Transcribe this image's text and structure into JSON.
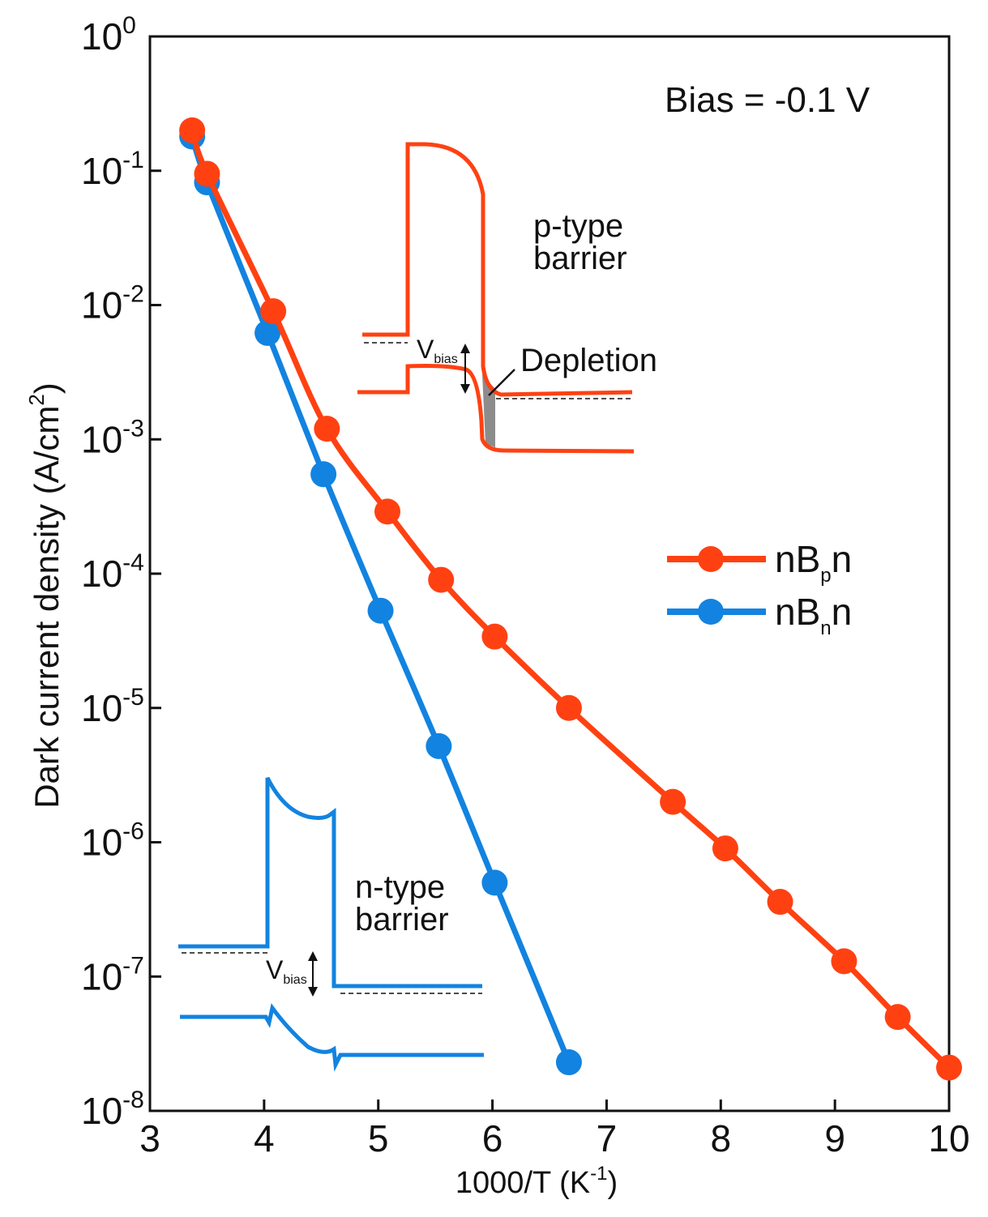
{
  "chart_data": {
    "type": "line",
    "title": "",
    "xlabel": "1000/T (K",
    "xlabel_sup": "-1",
    "xlabel_end": ")",
    "ylabel": "Dark current density (A/cm",
    "ylabel_sup": "2",
    "ylabel_end": ")",
    "xlim": [
      3,
      10
    ],
    "ylim_log10": [
      -8,
      0
    ],
    "y_scale": "log",
    "x_ticks": [
      "3",
      "4",
      "5",
      "6",
      "7",
      "8",
      "9",
      "10"
    ],
    "y_ticks": [
      {
        "base": "10",
        "exp": "0"
      },
      {
        "base": "10",
        "exp": "-1"
      },
      {
        "base": "10",
        "exp": "-2"
      },
      {
        "base": "10",
        "exp": "-3"
      },
      {
        "base": "10",
        "exp": "-4"
      },
      {
        "base": "10",
        "exp": "-5"
      },
      {
        "base": "10",
        "exp": "-6"
      },
      {
        "base": "10",
        "exp": "-7"
      },
      {
        "base": "10",
        "exp": "-8"
      }
    ],
    "annotation": "Bias = -0.1 V",
    "legend_position": "right-middle",
    "series": [
      {
        "name": "nBpn",
        "label_main": "nB",
        "label_sub": "p",
        "label_end": "n",
        "color": "#ff4112",
        "x": [
          3.37,
          3.5,
          4.08,
          4.55,
          5.08,
          5.55,
          6.02,
          6.67,
          7.58,
          8.04,
          8.52,
          9.08,
          9.55,
          10.0
        ],
        "y": [
          0.2,
          0.095,
          0.009,
          0.0012,
          0.00029,
          9e-05,
          3.4e-05,
          1e-05,
          2e-06,
          9e-07,
          3.6e-07,
          1.3e-07,
          5e-08,
          2.1e-08
        ]
      },
      {
        "name": "nBnn",
        "label_main": "nB",
        "label_sub": "n",
        "label_end": "n",
        "color": "#1283e0",
        "x": [
          3.37,
          3.5,
          4.03,
          4.52,
          5.02,
          5.53,
          6.02,
          6.67
        ],
        "y": [
          0.18,
          0.082,
          0.0062,
          0.00055,
          5.3e-05,
          5.2e-06,
          5e-07,
          2.3e-08
        ]
      }
    ],
    "insets": [
      {
        "name": "p-type barrier",
        "label_line1": "p-type",
        "label_line2": "barrier",
        "vbias_main": "V",
        "vbias_sub": "bias",
        "depletion_label": "Depletion",
        "color": "#ff4112",
        "fill_color": "#8c8c8c"
      },
      {
        "name": "n-type barrier",
        "label_line1": "n-type",
        "label_line2": "barrier",
        "vbias_main": "V",
        "vbias_sub": "bias",
        "color": "#1283e0"
      }
    ]
  }
}
